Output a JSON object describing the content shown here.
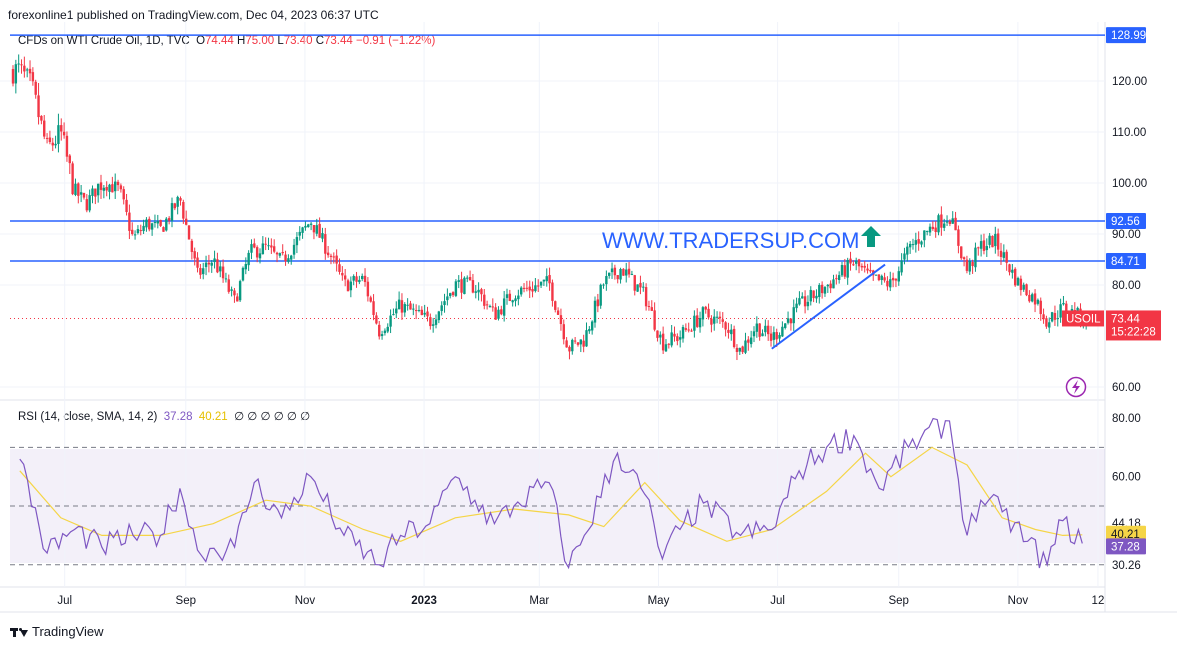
{
  "header": {
    "published": "forexonline1 published on TradingView.com, Dec 04, 2023 06:37 UTC"
  },
  "legend": {
    "symbol": "CFDs on WTI Crude Oil, 1D, TVC",
    "o_label": "O",
    "o": "74.44",
    "h_label": "H",
    "h": "75.00",
    "l_label": "L",
    "l": "73.40",
    "c_label": "C",
    "c": "73.44",
    "change": "−0.91 (−1.22%)"
  },
  "rsi_legend": {
    "label": "RSI (14, close, SMA, 14, 2)",
    "rsi": "37.28",
    "sma": "40.21",
    "extras": "∅ ∅ ∅ ∅ ∅ ∅"
  },
  "watermark": "WWW.TRADERSUP.COM",
  "symbol_tag": "USOIL",
  "countdown": "15:22:28",
  "footer": {
    "brand": "TradingView"
  },
  "colors": {
    "up": "#089981",
    "down": "#f23645",
    "level": "#2962ff",
    "rsi": "#7e57c2",
    "rsi_sma": "#f5d547",
    "watermark": "#2962ff",
    "arrow": "#089981"
  },
  "chart_data": [
    {
      "type": "candlestick",
      "title": "CFDs on WTI Crude Oil, 1D, TVC",
      "ylim": [
        58,
        130
      ],
      "y_ticks": [
        "120.00",
        "110.00",
        "100.00",
        "90.00",
        "80.00",
        "60.00"
      ],
      "x_ticks": [
        "Jul",
        "Sep",
        "Nov",
        "2023",
        "Mar",
        "May",
        "Jul",
        "Sep",
        "Nov",
        "12"
      ],
      "horizontal_levels": [
        {
          "value": 128.99,
          "label": "128.99"
        },
        {
          "value": 92.56,
          "label": "92.56"
        },
        {
          "value": 84.71,
          "label": "84.71"
        }
      ],
      "last_price": {
        "value": 73.44,
        "label": "73.44"
      },
      "trendline": {
        "from": [
          "2023-06-28",
          67.5
        ],
        "to": [
          "2023-08-25",
          84.0
        ]
      },
      "close_path": [
        [
          "2022-06-08",
          122.1
        ],
        [
          "2022-06-14",
          118.9
        ],
        [
          "2022-06-22",
          106.5
        ],
        [
          "2022-06-29",
          109.8
        ],
        [
          "2022-07-06",
          98.5
        ],
        [
          "2022-07-12",
          95.8
        ],
        [
          "2022-07-20",
          100.5
        ],
        [
          "2022-07-29",
          98.6
        ],
        [
          "2022-08-05",
          89.0
        ],
        [
          "2022-08-12",
          92.1
        ],
        [
          "2022-08-19",
          90.8
        ],
        [
          "2022-08-29",
          97.0
        ],
        [
          "2022-09-07",
          81.9
        ],
        [
          "2022-09-15",
          85.1
        ],
        [
          "2022-09-26",
          76.7
        ],
        [
          "2022-10-04",
          86.5
        ],
        [
          "2022-10-12",
          87.3
        ],
        [
          "2022-10-20",
          84.5
        ],
        [
          "2022-11-04",
          92.6
        ],
        [
          "2022-11-14",
          85.9
        ],
        [
          "2022-11-21",
          80.0
        ],
        [
          "2022-12-01",
          81.2
        ],
        [
          "2022-12-09",
          71.0
        ],
        [
          "2022-12-20",
          76.0
        ],
        [
          "2023-01-04",
          72.8
        ],
        [
          "2023-01-17",
          80.2
        ],
        [
          "2023-01-27",
          79.7
        ],
        [
          "2023-02-06",
          74.1
        ],
        [
          "2023-02-16",
          78.5
        ],
        [
          "2023-03-06",
          80.5
        ],
        [
          "2023-03-16",
          67.6
        ],
        [
          "2023-03-24",
          69.3
        ],
        [
          "2023-04-03",
          80.4
        ],
        [
          "2023-04-12",
          83.3
        ],
        [
          "2023-04-24",
          77.9
        ],
        [
          "2023-05-03",
          68.6
        ],
        [
          "2023-05-12",
          70.0
        ],
        [
          "2023-05-24",
          74.3
        ],
        [
          "2023-06-05",
          72.1
        ],
        [
          "2023-06-12",
          67.1
        ],
        [
          "2023-06-20",
          72.0
        ],
        [
          "2023-06-28",
          69.5
        ],
        [
          "2023-07-12",
          75.8
        ],
        [
          "2023-07-26",
          79.8
        ],
        [
          "2023-08-09",
          84.4
        ],
        [
          "2023-08-18",
          81.2
        ],
        [
          "2023-08-28",
          80.1
        ],
        [
          "2023-09-07",
          87.5
        ],
        [
          "2023-09-18",
          91.5
        ],
        [
          "2023-09-27",
          93.7
        ],
        [
          "2023-10-06",
          82.8
        ],
        [
          "2023-10-13",
          87.7
        ],
        [
          "2023-10-20",
          88.8
        ],
        [
          "2023-11-01",
          80.4
        ],
        [
          "2023-11-10",
          77.2
        ],
        [
          "2023-11-16",
          72.9
        ],
        [
          "2023-11-24",
          75.5
        ],
        [
          "2023-12-01",
          74.1
        ],
        [
          "2023-12-04",
          73.44
        ]
      ]
    },
    {
      "type": "line",
      "title": "RSI (14, close, SMA, 14, 2)",
      "ylim": [
        25,
        82
      ],
      "y_ticks": [
        "80.00",
        "60.00"
      ],
      "levels": [
        70,
        50,
        30
      ],
      "value_labels": [
        "44.18",
        "40.21",
        "37.28",
        "30.26"
      ],
      "series": [
        {
          "name": "RSI",
          "values": [
            [
              "2022-06-08",
              66
            ],
            [
              "2022-06-22",
              34
            ],
            [
              "2022-07-06",
              42
            ],
            [
              "2022-07-20",
              36
            ],
            [
              "2022-08-05",
              40
            ],
            [
              "2022-08-19",
              40
            ],
            [
              "2022-08-29",
              56
            ],
            [
              "2022-09-07",
              35
            ],
            [
              "2022-09-26",
              36
            ],
            [
              "2022-10-06",
              58
            ],
            [
              "2022-10-20",
              46
            ],
            [
              "2022-11-04",
              60
            ],
            [
              "2022-11-21",
              40
            ],
            [
              "2022-12-09",
              30
            ],
            [
              "2022-12-20",
              40
            ],
            [
              "2023-01-04",
              44
            ],
            [
              "2023-01-17",
              60
            ],
            [
              "2023-01-27",
              52
            ],
            [
              "2023-02-06",
              44
            ],
            [
              "2023-02-16",
              50
            ],
            [
              "2023-03-06",
              58
            ],
            [
              "2023-03-16",
              29
            ],
            [
              "2023-03-24",
              40
            ],
            [
              "2023-04-10",
              68
            ],
            [
              "2023-04-24",
              54
            ],
            [
              "2023-05-03",
              32
            ],
            [
              "2023-05-12",
              42
            ],
            [
              "2023-05-24",
              51
            ],
            [
              "2023-06-12",
              40
            ],
            [
              "2023-06-28",
              42
            ],
            [
              "2023-07-12",
              62
            ],
            [
              "2023-07-26",
              70
            ],
            [
              "2023-08-09",
              74
            ],
            [
              "2023-08-22",
              56
            ],
            [
              "2023-09-06",
              70
            ],
            [
              "2023-09-27",
              79
            ],
            [
              "2023-10-06",
              40
            ],
            [
              "2023-10-13",
              52
            ],
            [
              "2023-10-24",
              48
            ],
            [
              "2023-11-06",
              38
            ],
            [
              "2023-11-16",
              30
            ],
            [
              "2023-11-24",
              45
            ],
            [
              "2023-12-04",
              37.28
            ]
          ]
        },
        {
          "name": "SMA",
          "values": [
            [
              "2022-06-08",
              62
            ],
            [
              "2022-06-29",
              46
            ],
            [
              "2022-07-20",
              40
            ],
            [
              "2022-08-19",
              40
            ],
            [
              "2022-09-15",
              44
            ],
            [
              "2022-10-12",
              52
            ],
            [
              "2022-11-04",
              50
            ],
            [
              "2022-12-01",
              42
            ],
            [
              "2022-12-20",
              38
            ],
            [
              "2023-01-17",
              46
            ],
            [
              "2023-02-16",
              49
            ],
            [
              "2023-03-16",
              47
            ],
            [
              "2023-04-03",
              43
            ],
            [
              "2023-04-24",
              58
            ],
            [
              "2023-05-12",
              45
            ],
            [
              "2023-06-05",
              38
            ],
            [
              "2023-06-28",
              42
            ],
            [
              "2023-07-26",
              55
            ],
            [
              "2023-08-15",
              68
            ],
            [
              "2023-08-28",
              60
            ],
            [
              "2023-09-18",
              70
            ],
            [
              "2023-10-06",
              64
            ],
            [
              "2023-10-24",
              46
            ],
            [
              "2023-11-10",
              42
            ],
            [
              "2023-11-24",
              40
            ],
            [
              "2023-12-04",
              40.21
            ]
          ]
        }
      ]
    }
  ]
}
